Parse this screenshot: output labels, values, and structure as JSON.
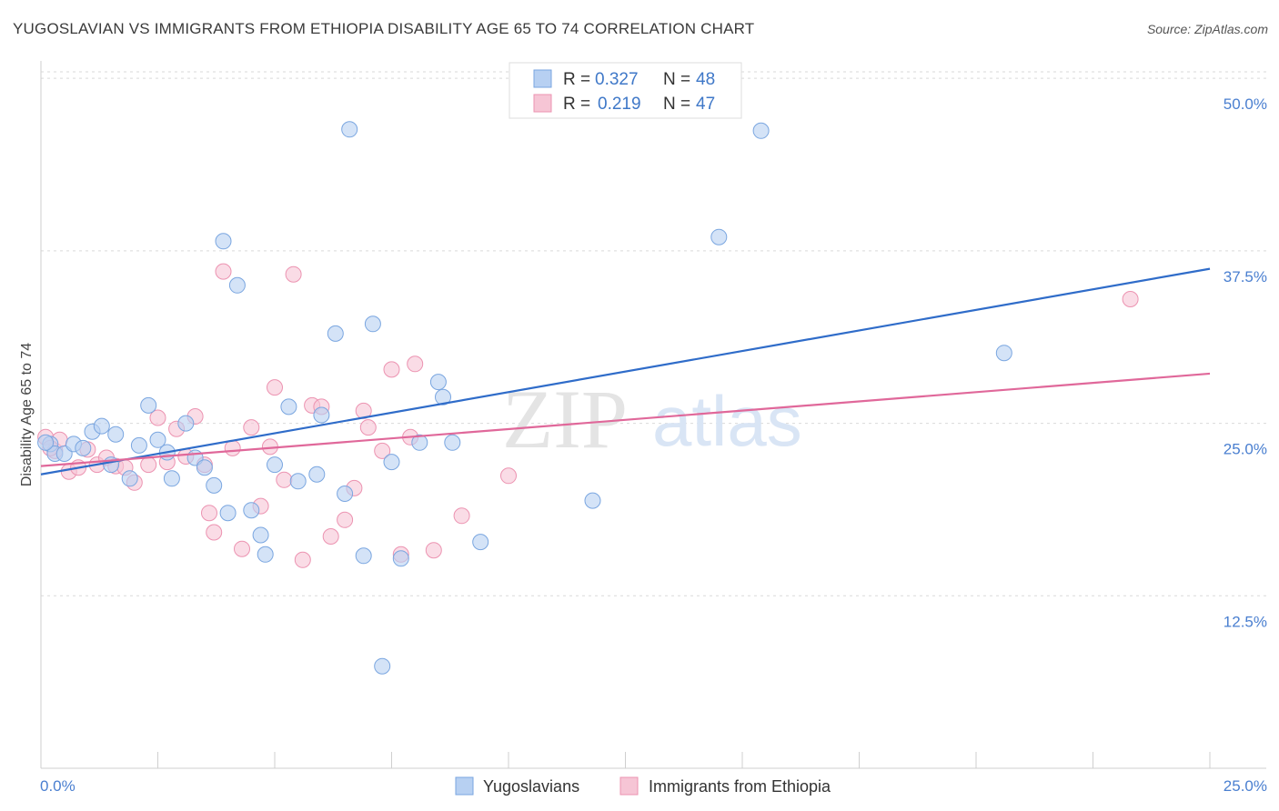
{
  "title": "YUGOSLAVIAN VS IMMIGRANTS FROM ETHIOPIA DISABILITY AGE 65 TO 74 CORRELATION CHART",
  "source": "Source: ZipAtlas.com",
  "watermark": {
    "zip": "ZIP",
    "atlas": "atlas"
  },
  "colors": {
    "blue_fill": "#b7d0f2",
    "blue_stroke": "#7aa6e0",
    "blue_line": "#2f6cc9",
    "pink_fill": "#f6c5d5",
    "pink_stroke": "#ec93b1",
    "pink_line": "#e0689a",
    "grid": "#d9d9d9",
    "tick_text": "#4a7fd0"
  },
  "legend": {
    "r_label": "R =",
    "n_label": "N =",
    "rows": [
      {
        "series": "Yugoslavians",
        "r": "0.327",
        "n": "48"
      },
      {
        "series": "Immigrants from Ethiopia",
        "r": "0.219",
        "n": "47"
      }
    ]
  },
  "chart_data": {
    "type": "scatter",
    "title": "YUGOSLAVIAN VS IMMIGRANTS FROM ETHIOPIA DISABILITY AGE 65 TO 74 CORRELATION CHART",
    "xlabel": "",
    "ylabel": "Disability Age 65 to 74",
    "xlim": [
      0,
      25
    ],
    "ylim": [
      0,
      51
    ],
    "x_tick_labels": [
      "0.0%",
      "25.0%"
    ],
    "y_ticks": [
      12.5,
      25.0,
      37.5,
      50.0
    ],
    "y_tick_labels": [
      "12.5%",
      "25.0%",
      "37.5%",
      "50.0%"
    ],
    "grid": true,
    "legend_position": "top-center",
    "series": [
      {
        "name": "Yugoslavians",
        "color": "blue",
        "trend": {
          "x": [
            0,
            25
          ],
          "y": [
            21.3,
            36.2
          ]
        },
        "points": [
          [
            0.2,
            23.5
          ],
          [
            0.3,
            22.8
          ],
          [
            0.5,
            22.8
          ],
          [
            0.7,
            23.5
          ],
          [
            0.9,
            23.2
          ],
          [
            1.1,
            24.4
          ],
          [
            1.3,
            24.8
          ],
          [
            1.5,
            22.0
          ],
          [
            1.6,
            24.2
          ],
          [
            1.9,
            21.0
          ],
          [
            2.1,
            23.4
          ],
          [
            2.3,
            26.3
          ],
          [
            2.5,
            23.8
          ],
          [
            2.7,
            22.9
          ],
          [
            2.8,
            21.0
          ],
          [
            3.1,
            25.0
          ],
          [
            3.3,
            22.5
          ],
          [
            3.5,
            21.8
          ],
          [
            3.7,
            20.5
          ],
          [
            3.9,
            38.2
          ],
          [
            4.0,
            18.5
          ],
          [
            4.2,
            35.0
          ],
          [
            4.5,
            18.7
          ],
          [
            4.7,
            16.9
          ],
          [
            4.8,
            15.5
          ],
          [
            5.0,
            22.0
          ],
          [
            5.3,
            26.2
          ],
          [
            5.5,
            20.8
          ],
          [
            5.9,
            21.3
          ],
          [
            6.0,
            25.6
          ],
          [
            6.3,
            31.5
          ],
          [
            6.5,
            19.9
          ],
          [
            6.6,
            46.3
          ],
          [
            6.9,
            15.4
          ],
          [
            7.1,
            32.2
          ],
          [
            7.3,
            7.4
          ],
          [
            7.5,
            22.2
          ],
          [
            7.7,
            15.2
          ],
          [
            8.1,
            23.6
          ],
          [
            8.5,
            28.0
          ],
          [
            8.6,
            26.9
          ],
          [
            8.8,
            23.6
          ],
          [
            9.4,
            16.4
          ],
          [
            11.8,
            19.4
          ],
          [
            14.5,
            38.5
          ],
          [
            15.4,
            46.2
          ],
          [
            20.6,
            30.1
          ],
          [
            0.1,
            23.6
          ]
        ]
      },
      {
        "name": "Immigrants from Ethiopia",
        "color": "pink",
        "trend": {
          "x": [
            0,
            25
          ],
          "y": [
            21.9,
            28.6
          ]
        },
        "points": [
          [
            0.1,
            24.0
          ],
          [
            0.3,
            23.0
          ],
          [
            0.4,
            23.8
          ],
          [
            0.6,
            21.5
          ],
          [
            0.8,
            21.8
          ],
          [
            1.0,
            23.1
          ],
          [
            1.2,
            22.0
          ],
          [
            1.4,
            22.5
          ],
          [
            1.6,
            21.9
          ],
          [
            1.8,
            21.8
          ],
          [
            2.0,
            20.7
          ],
          [
            2.3,
            22.0
          ],
          [
            2.5,
            25.4
          ],
          [
            2.7,
            22.2
          ],
          [
            2.9,
            24.6
          ],
          [
            3.1,
            22.6
          ],
          [
            3.3,
            25.5
          ],
          [
            3.5,
            22.0
          ],
          [
            3.6,
            18.5
          ],
          [
            3.7,
            17.1
          ],
          [
            3.9,
            36.0
          ],
          [
            4.1,
            23.2
          ],
          [
            4.3,
            15.9
          ],
          [
            4.5,
            24.7
          ],
          [
            4.7,
            19.0
          ],
          [
            4.9,
            23.3
          ],
          [
            5.0,
            27.6
          ],
          [
            5.2,
            20.9
          ],
          [
            5.4,
            35.8
          ],
          [
            5.6,
            15.1
          ],
          [
            5.8,
            26.3
          ],
          [
            6.0,
            26.2
          ],
          [
            6.2,
            16.8
          ],
          [
            6.5,
            18.0
          ],
          [
            6.7,
            20.3
          ],
          [
            6.9,
            25.9
          ],
          [
            7.0,
            24.7
          ],
          [
            7.3,
            23.0
          ],
          [
            7.5,
            28.9
          ],
          [
            7.7,
            15.5
          ],
          [
            7.9,
            24.0
          ],
          [
            8.0,
            29.3
          ],
          [
            8.4,
            15.8
          ],
          [
            9.0,
            18.3
          ],
          [
            10.0,
            21.2
          ],
          [
            23.3,
            34.0
          ],
          [
            0.2,
            23.2
          ]
        ]
      }
    ]
  }
}
